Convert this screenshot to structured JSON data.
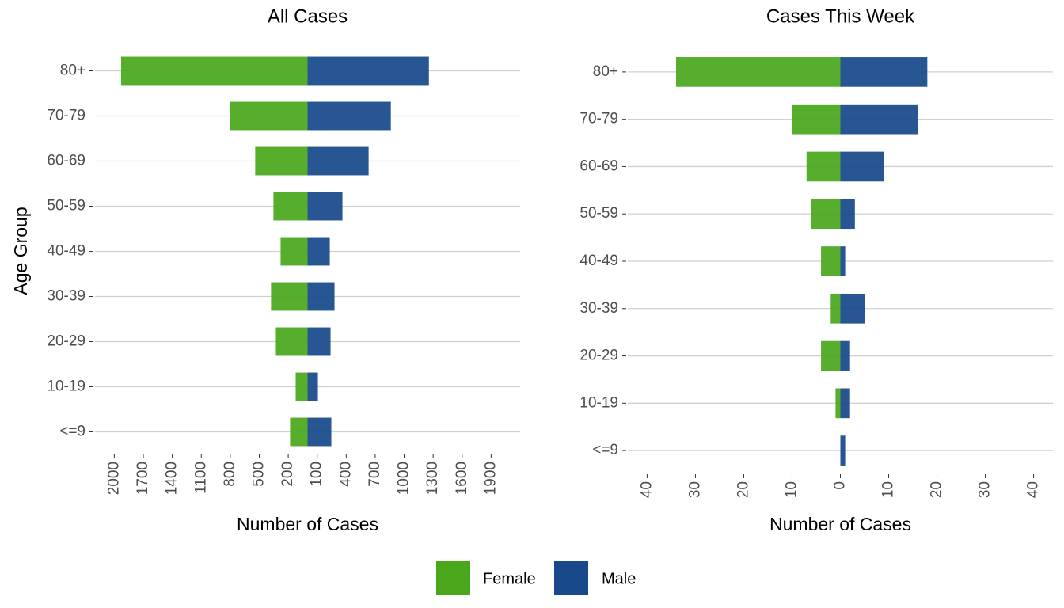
{
  "chart_data": [
    {
      "type": "bar",
      "orientation": "horizontal",
      "title": "All Cases",
      "xlabel": "Number of Cases",
      "ylabel": "Age Group",
      "categories": [
        "80+",
        "70-79",
        "60-69",
        "50-59",
        "40-49",
        "30-39",
        "20-29",
        "10-19",
        "<=9"
      ],
      "series": [
        {
          "name": "Female",
          "color": "#4aa71c",
          "values": [
            -1930,
            -805,
            -542,
            -353,
            -279,
            -378,
            -328,
            -123,
            -181
          ]
        },
        {
          "name": "Male",
          "color": "#17498b",
          "values": [
            1256,
            862,
            632,
            361,
            230,
            279,
            238,
            107,
            246
          ]
        }
      ],
      "xlim": [
        -2200,
        2200
      ],
      "xticks": [
        {
          "value": -2000,
          "label": "2000"
        },
        {
          "value": -1700,
          "label": "1700"
        },
        {
          "value": -1400,
          "label": "1400"
        },
        {
          "value": -1100,
          "label": "1100"
        },
        {
          "value": -800,
          "label": "800"
        },
        {
          "value": -500,
          "label": "500"
        },
        {
          "value": -200,
          "label": "200"
        },
        100,
        400,
        700,
        1000,
        1300,
        1600,
        1900
      ],
      "grid": true,
      "legend": "bottom"
    },
    {
      "type": "bar",
      "orientation": "horizontal",
      "title": "Cases This Week",
      "xlabel": "Number of Cases",
      "categories": [
        "80+",
        "70-79",
        "60-69",
        "50-59",
        "40-49",
        "30-39",
        "20-29",
        "10-19",
        "<=9"
      ],
      "series": [
        {
          "name": "Female",
          "color": "#4aa71c",
          "values": [
            -34,
            -10,
            -7,
            -6,
            -4,
            -2,
            -4,
            -1,
            0
          ]
        },
        {
          "name": "Male",
          "color": "#17498b",
          "values": [
            18,
            16,
            9,
            3,
            1,
            5,
            2,
            2,
            1
          ]
        }
      ],
      "xlim": [
        -44,
        44
      ],
      "xticks": [
        {
          "value": -40,
          "label": "40"
        },
        {
          "value": -30,
          "label": "30"
        },
        {
          "value": -20,
          "label": "20"
        },
        {
          "value": -10,
          "label": "10"
        },
        0,
        10,
        20,
        30,
        40
      ],
      "grid": true
    }
  ]
}
